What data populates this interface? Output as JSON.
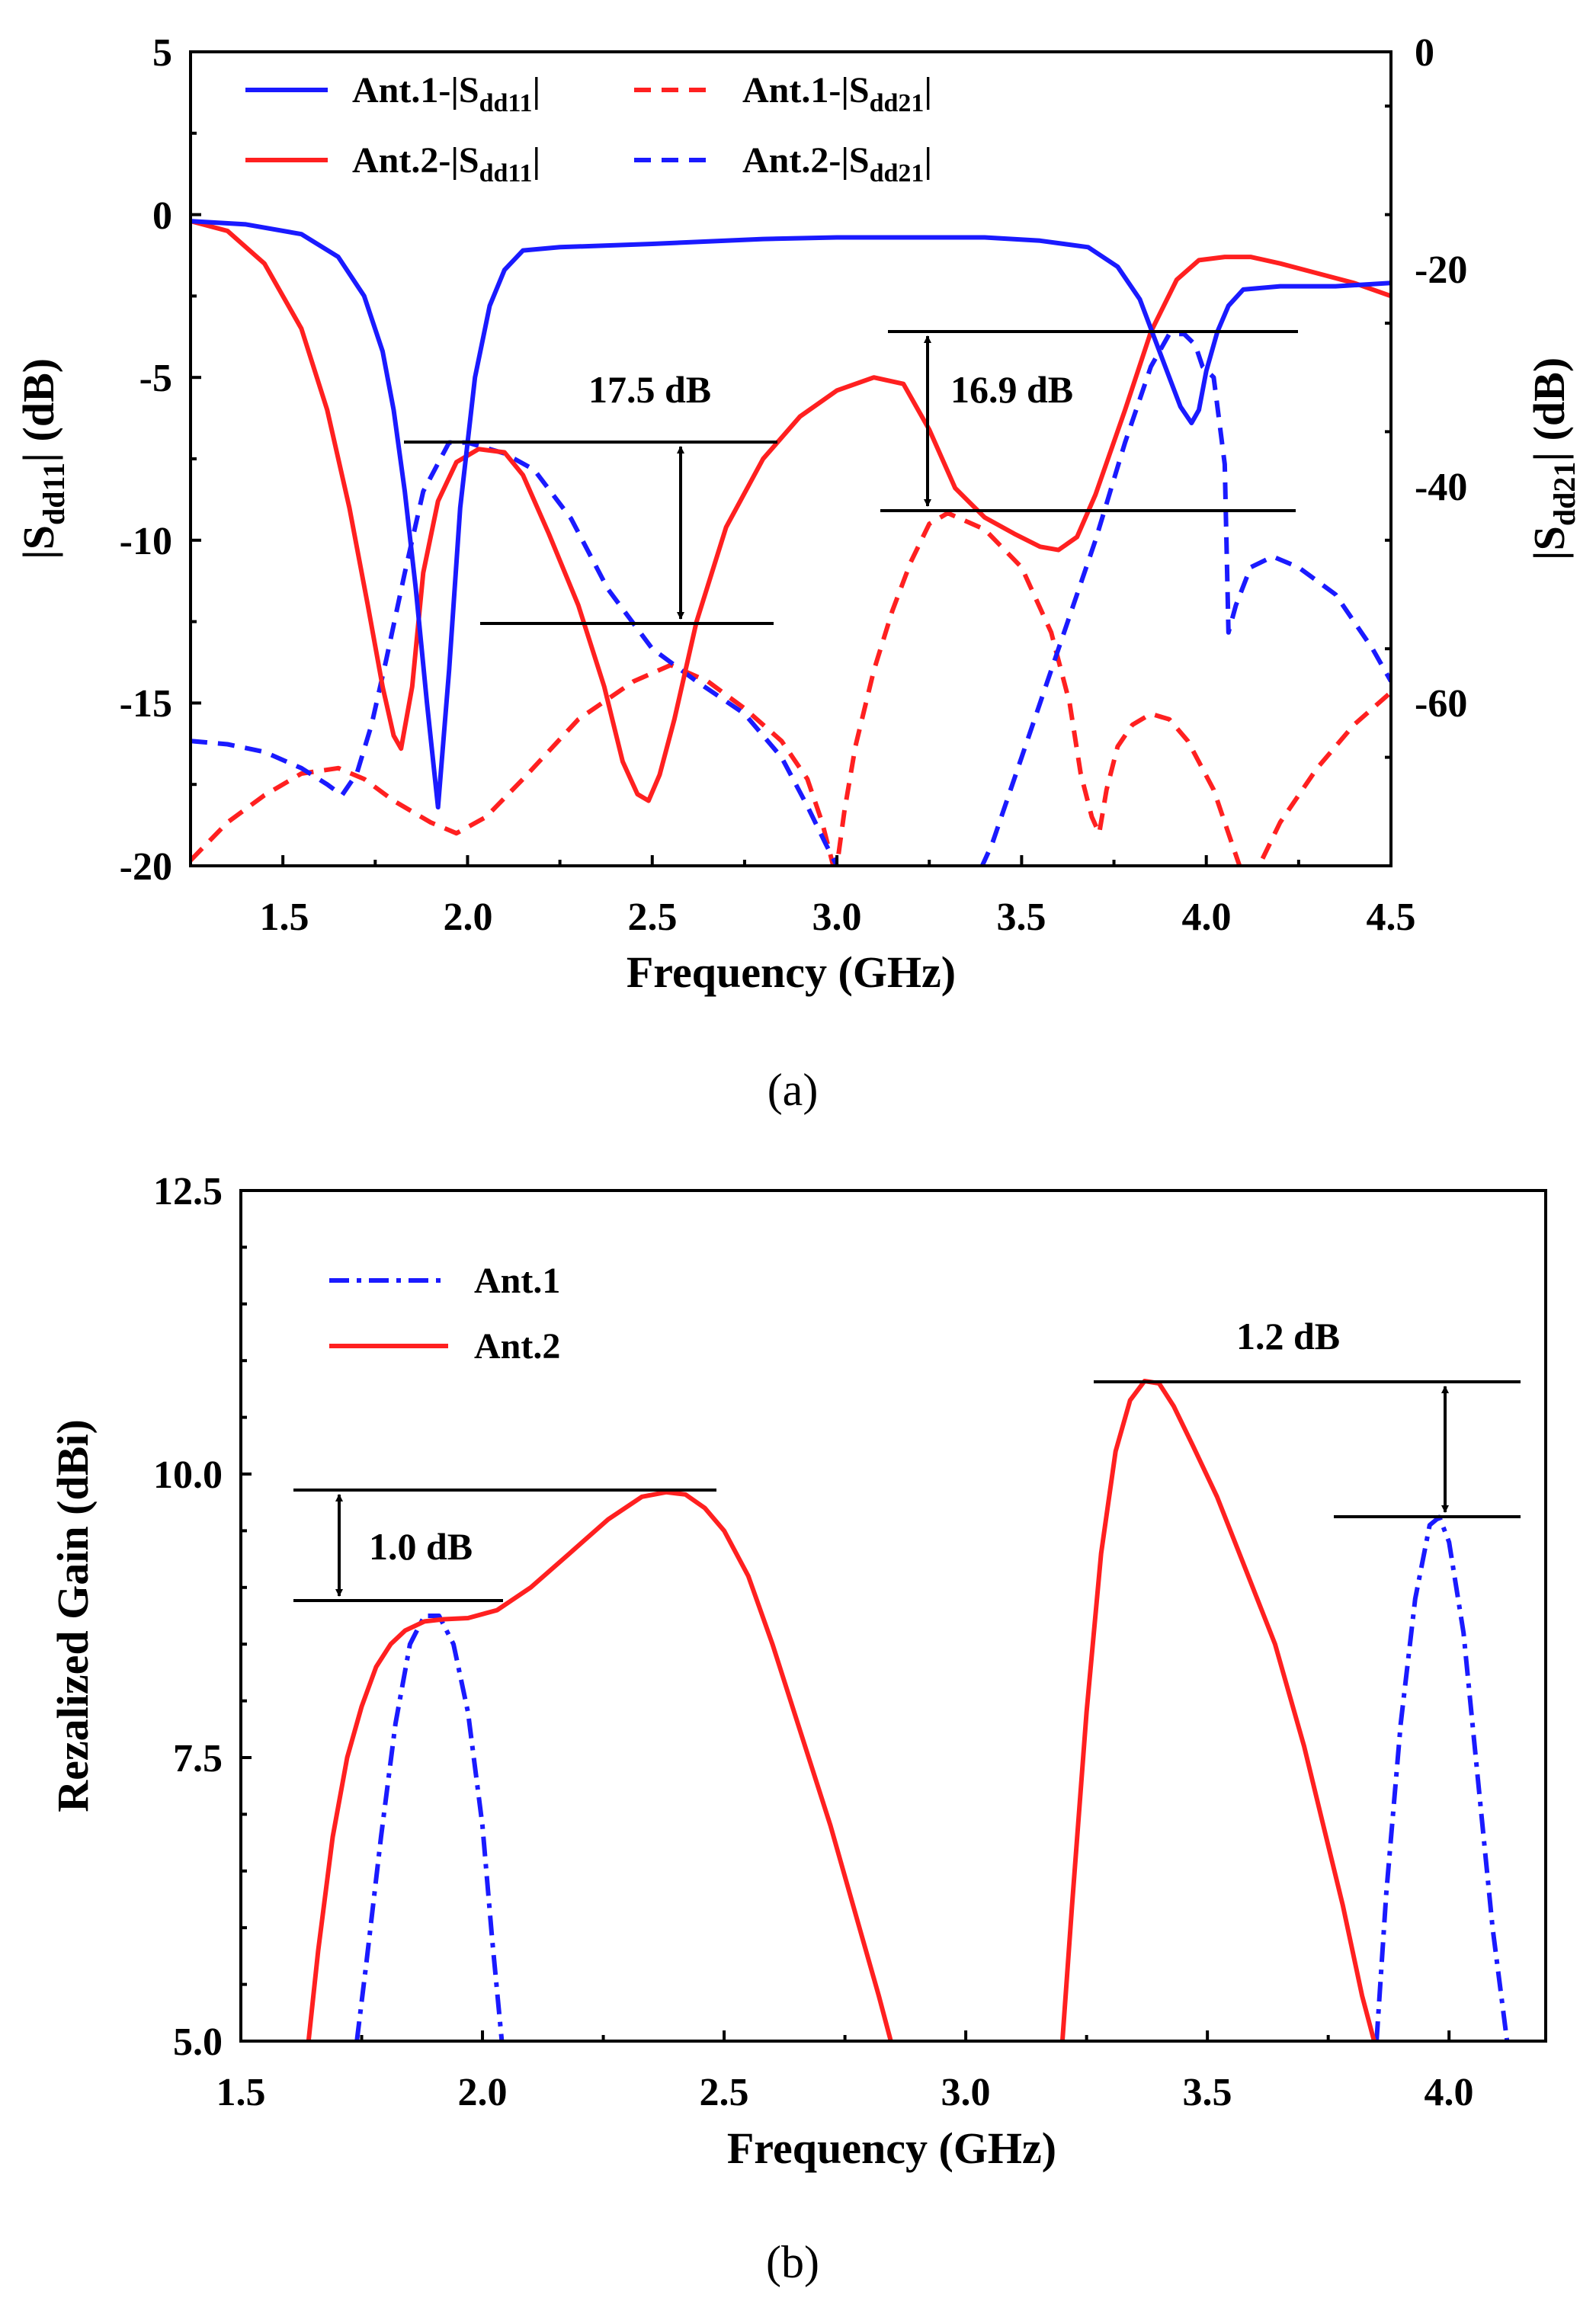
{
  "chart_data": [
    {
      "type": "line",
      "caption": "(a)",
      "xlabel": "Frequency (GHz)",
      "ylabel": "|S",
      "ylabel_sub": "dd11",
      "ylabel_tail": "| (dB)",
      "y2label": "|S",
      "y2label_sub": "dd21",
      "y2label_tail": "|  (dB)",
      "xlim": [
        1.25,
        4.5
      ],
      "ylim": [
        -20,
        5
      ],
      "y2lim": [
        -75,
        0
      ],
      "xticks": [
        "1.5",
        "2.0",
        "2.5",
        "3.0",
        "3.5",
        "4.0",
        "4.5"
      ],
      "yticks": [
        "5",
        "0",
        "-5",
        "-10",
        "-15",
        "-20"
      ],
      "y2ticks": [
        "0",
        "-20",
        "-40",
        "-60"
      ],
      "legend": {
        "placement": "top",
        "entries": [
          {
            "prefix": "Ant.1-|S",
            "sub": "dd11",
            "suffix": "|",
            "color": "#1a1aff",
            "dash": "solid"
          },
          {
            "prefix": "Ant.1-|S",
            "sub": "dd21",
            "suffix": "|",
            "color": "#ff2020",
            "dash": "dashed"
          },
          {
            "prefix": "Ant.2-|S",
            "sub": "dd11",
            "suffix": "|",
            "color": "#ff2020",
            "dash": "solid"
          },
          {
            "prefix": "Ant.2-|S",
            "sub": "dd21",
            "suffix": "|",
            "color": "#1a1aff",
            "dash": "dashed"
          }
        ]
      },
      "annotations": [
        {
          "text": "17.5 dB",
          "x": 2.65,
          "y_right": -37,
          "y_left": -12.7,
          "arrow_x": 2.8
        },
        {
          "text": "16.9 dB",
          "x": 3.88,
          "y_right": -25.5,
          "y_left": -9.1,
          "arrow_x": 3.27
        }
      ],
      "series": [
        {
          "name": "Ant.1-|Sdd11|",
          "axis": "left",
          "color": "#1a1aff",
          "dash": "solid",
          "x": [
            1.25,
            1.4,
            1.55,
            1.65,
            1.72,
            1.77,
            1.8,
            1.83,
            1.86,
            1.89,
            1.92,
            1.95,
            1.98,
            2.02,
            2.06,
            2.1,
            2.15,
            2.25,
            2.5,
            2.8,
            3.0,
            3.2,
            3.4,
            3.55,
            3.68,
            3.76,
            3.82,
            3.86,
            3.9,
            3.93,
            3.96,
            3.98,
            4.0,
            4.03,
            4.06,
            4.1,
            4.2,
            4.35,
            4.5
          ],
          "y": [
            -0.2,
            -0.3,
            -0.6,
            -1.3,
            -2.5,
            -4.2,
            -6.0,
            -8.5,
            -11.5,
            -15.0,
            -18.2,
            -14.0,
            -9.0,
            -5.0,
            -2.8,
            -1.7,
            -1.1,
            -1.0,
            -0.9,
            -0.75,
            -0.7,
            -0.7,
            -0.7,
            -0.8,
            -1.0,
            -1.6,
            -2.6,
            -3.8,
            -5.0,
            -5.9,
            -6.4,
            -6.0,
            -4.8,
            -3.6,
            -2.8,
            -2.3,
            -2.2,
            -2.2,
            -2.1
          ]
        },
        {
          "name": "Ant.1-|Sdd21|",
          "axis": "right",
          "color": "#ff2020",
          "dash": "dashed",
          "x": [
            1.25,
            1.35,
            1.45,
            1.55,
            1.65,
            1.72,
            1.8,
            1.9,
            1.97,
            2.05,
            2.15,
            2.3,
            2.45,
            2.55,
            2.65,
            2.75,
            2.85,
            2.92,
            2.96,
            2.99,
            3.0,
            3.02,
            3.05,
            3.1,
            3.15,
            3.2,
            3.25,
            3.3,
            3.4,
            3.5,
            3.58,
            3.63,
            3.66,
            3.69,
            3.71,
            3.73,
            3.76,
            3.8,
            3.85,
            3.9,
            3.95,
            4.02,
            4.07,
            4.1,
            4.12,
            4.15,
            4.2,
            4.3,
            4.4,
            4.5
          ],
          "y": [
            -74.5,
            -71,
            -68.5,
            -66.5,
            -66,
            -67,
            -69,
            -71,
            -72,
            -70.5,
            -67,
            -61.5,
            -58,
            -56.5,
            -58,
            -60.5,
            -63.5,
            -67,
            -71,
            -75,
            -75,
            -70,
            -64,
            -57,
            -51.5,
            -47,
            -43.5,
            -42.5,
            -44,
            -47.5,
            -53.5,
            -60,
            -66.5,
            -70.5,
            -72,
            -68,
            -64,
            -62,
            -61,
            -61.5,
            -63.5,
            -68,
            -73,
            -76,
            -76,
            -74.5,
            -71,
            -66,
            -62,
            -59
          ]
        },
        {
          "name": "Ant.2-|Sdd11|",
          "axis": "left",
          "color": "#ff2020",
          "dash": "solid",
          "x": [
            1.25,
            1.35,
            1.45,
            1.55,
            1.62,
            1.68,
            1.73,
            1.77,
            1.8,
            1.82,
            1.85,
            1.88,
            1.92,
            1.97,
            2.03,
            2.1,
            2.15,
            2.22,
            2.3,
            2.37,
            2.42,
            2.46,
            2.49,
            2.52,
            2.56,
            2.62,
            2.7,
            2.8,
            2.9,
            3.0,
            3.1,
            3.18,
            3.25,
            3.32,
            3.4,
            3.48,
            3.55,
            3.6,
            3.65,
            3.7,
            3.78,
            3.85,
            3.92,
            3.98,
            4.05,
            4.12,
            4.2,
            4.3,
            4.4,
            4.5
          ],
          "y": [
            -0.2,
            -0.5,
            -1.5,
            -3.5,
            -6.0,
            -9.0,
            -12.0,
            -14.5,
            -16.0,
            -16.4,
            -14.5,
            -11.0,
            -8.8,
            -7.6,
            -7.2,
            -7.3,
            -8.0,
            -9.8,
            -12.0,
            -14.5,
            -16.8,
            -17.8,
            -18.0,
            -17.2,
            -15.5,
            -12.5,
            -9.6,
            -7.5,
            -6.2,
            -5.4,
            -5.0,
            -5.2,
            -6.6,
            -8.4,
            -9.3,
            -9.8,
            -10.2,
            -10.3,
            -9.9,
            -8.6,
            -6.0,
            -3.6,
            -2.0,
            -1.4,
            -1.3,
            -1.3,
            -1.5,
            -1.8,
            -2.1,
            -2.5
          ]
        },
        {
          "name": "Ant.2-|Sdd21|",
          "axis": "right",
          "color": "#1a1aff",
          "dash": "dashed",
          "x": [
            1.25,
            1.35,
            1.45,
            1.55,
            1.62,
            1.66,
            1.7,
            1.74,
            1.78,
            1.83,
            1.88,
            1.95,
            2.0,
            2.05,
            2.1,
            2.18,
            2.28,
            2.38,
            2.5,
            2.62,
            2.75,
            2.85,
            2.92,
            2.97,
            3.0,
            3.02,
            3.38,
            3.42,
            3.5,
            3.6,
            3.7,
            3.78,
            3.85,
            3.9,
            3.94,
            3.97,
            3.99,
            4.02,
            4.05,
            4.06,
            4.08,
            4.12,
            4.18,
            4.25,
            4.35,
            4.45,
            4.5
          ],
          "y": [
            -63.5,
            -63.8,
            -64.5,
            -66,
            -67.5,
            -68.5,
            -66.5,
            -62,
            -56,
            -48,
            -40.5,
            -36,
            -36,
            -36.5,
            -37,
            -38.5,
            -43,
            -49.5,
            -55,
            -58,
            -61,
            -65,
            -69.5,
            -73,
            -75,
            -76,
            -76,
            -73,
            -65,
            -55,
            -45,
            -36,
            -29,
            -26,
            -26,
            -27,
            -29,
            -30,
            -38,
            -53.5,
            -51,
            -47.5,
            -46.5,
            -47.5,
            -50,
            -55,
            -58
          ]
        }
      ]
    },
    {
      "type": "line",
      "caption": "(b)",
      "xlabel": "Frequency (GHz)",
      "ylabel": "Rezalized Gain (dBi)",
      "xlim": [
        1.5,
        4.2
      ],
      "ylim": [
        5,
        12.5
      ],
      "xticks": [
        "1.5",
        "2.0",
        "2.5",
        "3.0",
        "3.5",
        "4.0"
      ],
      "yticks": [
        "12.5",
        "10.0",
        "7.5",
        "5.0"
      ],
      "legend": {
        "placement": "top-left",
        "entries": [
          {
            "label": "Ant.1",
            "color": "#1a1aff",
            "dash": "dashdot"
          },
          {
            "label": "Ant.2",
            "color": "#ff2020",
            "dash": "solid"
          }
        ]
      },
      "annotations": [
        {
          "text": "1.0 dB",
          "x": 1.72,
          "y_top": 9.85,
          "y_bottom": 8.85,
          "arrow_x": 1.7
        },
        {
          "text": "1.2 dB",
          "x": 3.9,
          "y_top": 10.82,
          "y_bottom": 9.62,
          "arrow_x": 3.97
        }
      ],
      "series": [
        {
          "name": "Ant.1",
          "color": "#1a1aff",
          "dash": "dashdot",
          "segments": [
            {
              "x": [
                1.74,
                1.76,
                1.79,
                1.82,
                1.85,
                1.88,
                1.91,
                1.94,
                1.97,
                2.0,
                2.02,
                2.04
              ],
              "y": [
                5.0,
                5.7,
                6.8,
                7.8,
                8.5,
                8.75,
                8.75,
                8.5,
                7.9,
                6.9,
                5.9,
                5.0
              ]
            },
            {
              "x": [
                3.85,
                3.87,
                3.9,
                3.93,
                3.96,
                3.98,
                4.0,
                4.03,
                4.06,
                4.09,
                4.12
              ],
              "y": [
                5.0,
                6.3,
                7.8,
                8.9,
                9.55,
                9.62,
                9.4,
                8.6,
                7.3,
                6.0,
                5.0
              ]
            }
          ]
        },
        {
          "name": "Ant.2",
          "color": "#ff2020",
          "dash": "solid",
          "segments": [
            {
              "x": [
                1.64,
                1.66,
                1.69,
                1.72,
                1.75,
                1.78,
                1.81,
                1.84,
                1.88,
                1.92,
                1.97,
                2.03,
                2.1,
                2.18,
                2.26,
                2.33,
                2.38,
                2.42,
                2.46,
                2.5,
                2.55,
                2.6,
                2.66,
                2.72,
                2.78,
                2.82,
                2.845
              ],
              "y": [
                5.0,
                5.8,
                6.8,
                7.5,
                7.95,
                8.3,
                8.5,
                8.62,
                8.7,
                8.72,
                8.73,
                8.8,
                9.0,
                9.3,
                9.6,
                9.8,
                9.84,
                9.82,
                9.7,
                9.5,
                9.1,
                8.5,
                7.7,
                6.9,
                6.0,
                5.4,
                5.0
              ]
            },
            {
              "x": [
                3.2,
                3.22,
                3.25,
                3.28,
                3.31,
                3.34,
                3.37,
                3.4,
                3.43,
                3.47,
                3.52,
                3.58,
                3.64,
                3.7,
                3.74,
                3.78,
                3.82,
                3.845
              ],
              "y": [
                5.0,
                6.2,
                7.9,
                9.3,
                10.2,
                10.65,
                10.82,
                10.8,
                10.6,
                10.25,
                9.8,
                9.15,
                8.5,
                7.6,
                6.9,
                6.2,
                5.4,
                5.0
              ]
            }
          ]
        }
      ]
    }
  ]
}
